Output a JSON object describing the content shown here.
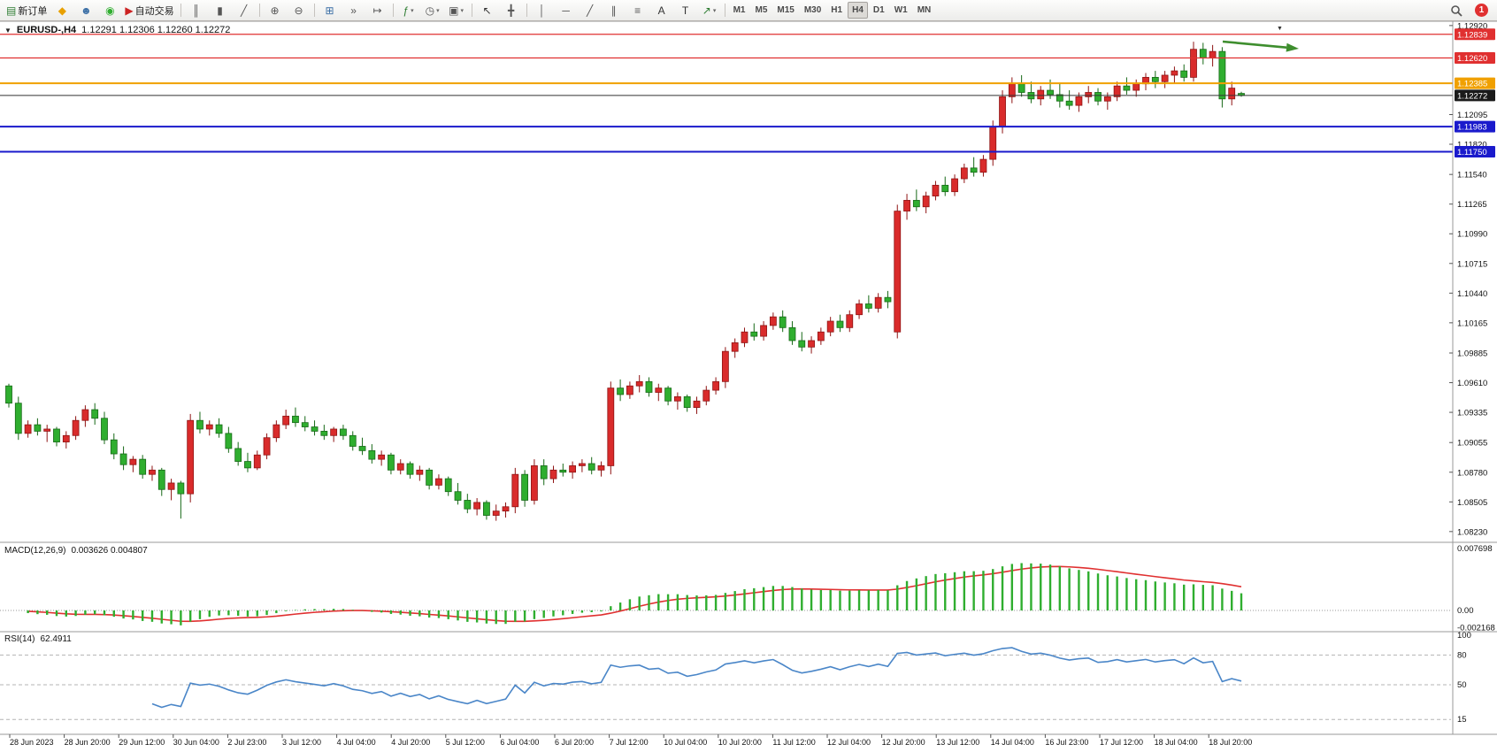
{
  "toolbar": {
    "groups": [
      {
        "name": "trade",
        "items": [
          {
            "name": "new-order-button",
            "glyph": "▤",
            "glyph_color": "#2e7d32",
            "label": "新订单"
          },
          {
            "name": "profiles-button",
            "glyph": "◆",
            "glyph_color": "#e8a000"
          },
          {
            "name": "market-watch-button",
            "glyph": "☻",
            "glyph_color": "#3a6ea5"
          },
          {
            "name": "signals-button",
            "glyph": "◉",
            "glyph_color": "#2fae2f"
          },
          {
            "name": "autotrading-button",
            "glyph": "▶",
            "glyph_color": "#cc2222",
            "label": "自动交易"
          }
        ]
      },
      {
        "name": "chart-type",
        "items": [
          {
            "name": "bar-chart-button",
            "glyph": "║",
            "glyph_color": "#555"
          },
          {
            "name": "candlestick-button",
            "glyph": "▮",
            "glyph_color": "#555"
          },
          {
            "name": "line-chart-button",
            "glyph": "╱",
            "glyph_color": "#555"
          }
        ]
      },
      {
        "name": "zoom",
        "items": [
          {
            "name": "zoom-in-button",
            "glyph": "⊕",
            "glyph_color": "#555"
          },
          {
            "name": "zoom-out-button",
            "glyph": "⊖",
            "glyph_color": "#555"
          }
        ]
      },
      {
        "name": "windows",
        "items": [
          {
            "name": "tile-windows-button",
            "glyph": "⊞",
            "glyph_color": "#3a6ea5"
          },
          {
            "name": "auto-scroll-button",
            "glyph": "»",
            "glyph_color": "#555"
          },
          {
            "name": "chart-shift-button",
            "glyph": "↦",
            "glyph_color": "#555"
          }
        ]
      },
      {
        "name": "insert",
        "items": [
          {
            "name": "indicators-button",
            "glyph": "ƒ",
            "glyph_color": "#2e7d32",
            "dropdown": true
          },
          {
            "name": "periods-button",
            "glyph": "◷",
            "glyph_color": "#555",
            "dropdown": true
          },
          {
            "name": "templates-button",
            "glyph": "▣",
            "glyph_color": "#555",
            "dropdown": true
          }
        ]
      },
      {
        "name": "cursor",
        "items": [
          {
            "name": "cursor-button",
            "glyph": "↖",
            "glyph_color": "#333"
          },
          {
            "name": "crosshair-button",
            "glyph": "╋",
            "glyph_color": "#555"
          }
        ]
      },
      {
        "name": "objects",
        "items": [
          {
            "name": "vertical-line-button",
            "glyph": "│",
            "glyph_color": "#555"
          },
          {
            "name": "horizontal-line-button",
            "glyph": "─",
            "glyph_color": "#555"
          },
          {
            "name": "trendline-button",
            "glyph": "╱",
            "glyph_color": "#555"
          },
          {
            "name": "channel-button",
            "glyph": "∥",
            "glyph_color": "#555"
          },
          {
            "name": "fibonacci-button",
            "glyph": "≡",
            "glyph_color": "#555"
          },
          {
            "name": "text-button",
            "glyph": "A",
            "glyph_color": "#333"
          },
          {
            "name": "label-button",
            "glyph": "T",
            "glyph_color": "#333"
          },
          {
            "name": "arrows-button",
            "glyph": "↗",
            "glyph_color": "#2e7d32",
            "dropdown": true
          }
        ]
      }
    ],
    "timeframes": [
      {
        "label": "M1"
      },
      {
        "label": "M5"
      },
      {
        "label": "M15"
      },
      {
        "label": "M30"
      },
      {
        "label": "H1"
      },
      {
        "label": "H4",
        "active": true
      },
      {
        "label": "D1"
      },
      {
        "label": "W1"
      },
      {
        "label": "MN"
      }
    ],
    "notification_count": "1"
  },
  "chart": {
    "collapse_icon": "▼",
    "info_symbol": "EURUSD-,H4",
    "info_ohlc": "1.12291 1.12306 1.12260 1.12272",
    "scroll_marker": "▼",
    "axis_ticks": [
      "1.12920",
      "1.12095",
      "1.11820",
      "1.11540",
      "1.11265",
      "1.10990",
      "1.10715",
      "1.10440",
      "1.10165",
      "1.09885",
      "1.09610",
      "1.09335",
      "1.09055",
      "1.08780",
      "1.08505",
      "1.08230"
    ],
    "axis_badges": [
      {
        "label": "1.12839",
        "price": 1.12839,
        "color": "#e03030"
      },
      {
        "label": "1.12620",
        "price": 1.1262,
        "color": "#e03030"
      },
      {
        "label": "1.12385",
        "price": 1.12385,
        "color": "#f0a000"
      },
      {
        "label": "1.12272",
        "price": 1.12272,
        "color": "#1a1a1a"
      },
      {
        "label": "1.11983",
        "price": 1.11983,
        "color": "#1a1acc"
      },
      {
        "label": "1.11750",
        "price": 1.1175,
        "color": "#1a1acc"
      }
    ],
    "arrow": {
      "from": [
        1382,
        47
      ],
      "to": [
        1468,
        55
      ],
      "color": "#3e8e2e"
    }
  },
  "macd": {
    "label": "MACD(12,26,9)",
    "values": "0.003626 0.004807",
    "axis": [
      "0.007698",
      "0.00",
      "-0.002168"
    ]
  },
  "rsi": {
    "label": "RSI(14)",
    "value": "62.4911",
    "levels": [
      100,
      80,
      50,
      15
    ]
  },
  "chart_data": [
    {
      "type": "candlestick",
      "symbol": "EURUSD",
      "timeframe": "H4",
      "up_color": "#d92b2b",
      "down_color": "#2fae2f",
      "color_convention": "red=bullish, green=bearish (CN style)",
      "ylim": [
        1.0813,
        1.1296
      ],
      "current_price": 1.12272,
      "hlines": [
        {
          "price": 1.12839,
          "color": "#e03030",
          "width": 1.2
        },
        {
          "price": 1.1262,
          "color": "#e03030",
          "width": 1.2
        },
        {
          "price": 1.12385,
          "color": "#f0a000",
          "width": 2
        },
        {
          "price": 1.11983,
          "color": "#1a1acc",
          "width": 2
        },
        {
          "price": 1.1175,
          "color": "#1a1acc",
          "width": 2
        }
      ],
      "x_labels": [
        "28 Jun 2023",
        "28 Jun 20:00",
        "29 Jun 12:00",
        "30 Jun 04:00",
        "2 Jul 23:00",
        "3 Jul 12:00",
        "4 Jul 04:00",
        "4 Jul 20:00",
        "5 Jul 12:00",
        "6 Jul 04:00",
        "6 Jul 20:00",
        "7 Jul 12:00",
        "10 Jul 04:00",
        "10 Jul 20:00",
        "11 Jul 12:00",
        "12 Jul 04:00",
        "12 Jul 20:00",
        "13 Jul 12:00",
        "14 Jul 04:00",
        "16 Jul 23:00",
        "17 Jul 12:00",
        "18 Jul 04:00",
        "18 Jul 20:00"
      ],
      "ohlc": [
        [
          1.0958,
          1.096,
          1.0938,
          1.0942
        ],
        [
          1.0942,
          1.0948,
          1.0908,
          1.0914
        ],
        [
          1.0914,
          1.0926,
          1.091,
          1.0922
        ],
        [
          1.0922,
          1.0928,
          1.0912,
          1.0916
        ],
        [
          1.0916,
          1.0922,
          1.0906,
          1.0918
        ],
        [
          1.0918,
          1.092,
          1.0902,
          1.0906
        ],
        [
          1.0906,
          1.0916,
          1.09,
          1.0912
        ],
        [
          1.0912,
          1.093,
          1.0908,
          1.0926
        ],
        [
          1.0926,
          1.094,
          1.092,
          1.0936
        ],
        [
          1.0936,
          1.0942,
          1.0922,
          1.0928
        ],
        [
          1.0928,
          1.0934,
          1.0904,
          1.0908
        ],
        [
          1.0908,
          1.0914,
          1.089,
          1.0895
        ],
        [
          1.0895,
          1.0902,
          1.088,
          1.0885
        ],
        [
          1.0885,
          1.0893,
          1.0878,
          1.089
        ],
        [
          1.089,
          1.0894,
          1.0872,
          1.0876
        ],
        [
          1.0876,
          1.0884,
          1.087,
          1.088
        ],
        [
          1.088,
          1.0882,
          1.0856,
          1.0862
        ],
        [
          1.0862,
          1.0872,
          1.0852,
          1.0868
        ],
        [
          1.0868,
          1.087,
          1.0835,
          1.0858
        ],
        [
          1.0858,
          1.0932,
          1.085,
          1.0926
        ],
        [
          1.0926,
          1.0934,
          1.0914,
          1.0918
        ],
        [
          1.0918,
          1.0926,
          1.0912,
          1.0922
        ],
        [
          1.0922,
          1.0928,
          1.091,
          1.0914
        ],
        [
          1.0914,
          1.092,
          1.0896,
          1.09
        ],
        [
          1.09,
          1.0906,
          1.0884,
          1.0888
        ],
        [
          1.0888,
          1.0896,
          1.0878,
          1.0882
        ],
        [
          1.0882,
          1.0898,
          1.088,
          1.0894
        ],
        [
          1.0894,
          1.0914,
          1.089,
          1.091
        ],
        [
          1.091,
          1.0926,
          1.0906,
          1.0922
        ],
        [
          1.0922,
          1.0936,
          1.0918,
          1.093
        ],
        [
          1.093,
          1.0938,
          1.092,
          1.0924
        ],
        [
          1.0924,
          1.093,
          1.0916,
          1.092
        ],
        [
          1.092,
          1.0926,
          1.0912,
          1.0916
        ],
        [
          1.0916,
          1.0922,
          1.0908,
          1.0912
        ],
        [
          1.0912,
          1.092,
          1.0906,
          1.0918
        ],
        [
          1.0918,
          1.0922,
          1.0908,
          1.0912
        ],
        [
          1.0912,
          1.0916,
          1.0898,
          1.0902
        ],
        [
          1.0902,
          1.091,
          1.0894,
          1.0898
        ],
        [
          1.0898,
          1.0904,
          1.0886,
          1.089
        ],
        [
          1.089,
          1.0898,
          1.0884,
          1.0894
        ],
        [
          1.0894,
          1.0896,
          1.0876,
          1.088
        ],
        [
          1.088,
          1.089,
          1.0876,
          1.0886
        ],
        [
          1.0886,
          1.0888,
          1.0872,
          1.0876
        ],
        [
          1.0876,
          1.0884,
          1.087,
          1.088
        ],
        [
          1.088,
          1.0882,
          1.0862,
          1.0866
        ],
        [
          1.0866,
          1.0876,
          1.0862,
          1.0872
        ],
        [
          1.0872,
          1.0874,
          1.0856,
          1.086
        ],
        [
          1.086,
          1.0868,
          1.0848,
          1.0852
        ],
        [
          1.0852,
          1.0858,
          1.084,
          1.0844
        ],
        [
          1.0844,
          1.0854,
          1.0838,
          1.085
        ],
        [
          1.085,
          1.0852,
          1.0834,
          1.0838
        ],
        [
          1.0838,
          1.0848,
          1.0833,
          1.0842
        ],
        [
          1.0842,
          1.085,
          1.0836,
          1.0846
        ],
        [
          1.0846,
          1.0882,
          1.084,
          1.0876
        ],
        [
          1.0876,
          1.088,
          1.0846,
          1.0852
        ],
        [
          1.0852,
          1.089,
          1.0848,
          1.0884
        ],
        [
          1.0884,
          1.089,
          1.0866,
          1.0872
        ],
        [
          1.0872,
          1.0884,
          1.0868,
          1.088
        ],
        [
          1.088,
          1.0886,
          1.0874,
          1.0878
        ],
        [
          1.0878,
          1.0888,
          1.0872,
          1.0884
        ],
        [
          1.0884,
          1.089,
          1.0878,
          1.0886
        ],
        [
          1.0886,
          1.0892,
          1.0876,
          1.088
        ],
        [
          1.088,
          1.0888,
          1.0874,
          1.0884
        ],
        [
          1.0884,
          1.0962,
          1.0876,
          1.0956
        ],
        [
          1.0956,
          1.0964,
          1.0944,
          1.095
        ],
        [
          1.095,
          1.0962,
          1.0946,
          1.0958
        ],
        [
          1.0958,
          1.0968,
          1.0952,
          1.0962
        ],
        [
          1.0962,
          1.0966,
          1.0948,
          1.0952
        ],
        [
          1.0952,
          1.096,
          1.0944,
          1.0956
        ],
        [
          1.0956,
          1.0958,
          1.094,
          1.0944
        ],
        [
          1.0944,
          1.0952,
          1.0936,
          1.0948
        ],
        [
          1.0948,
          1.095,
          1.0934,
          1.0938
        ],
        [
          1.0938,
          1.0948,
          1.0932,
          1.0944
        ],
        [
          1.0944,
          1.0958,
          1.094,
          1.0954
        ],
        [
          1.0954,
          1.0966,
          1.095,
          1.0962
        ],
        [
          1.0962,
          1.0994,
          1.0956,
          1.099
        ],
        [
          1.099,
          1.1002,
          1.0984,
          1.0998
        ],
        [
          1.0998,
          1.1012,
          1.0994,
          1.1008
        ],
        [
          1.1008,
          1.1016,
          1.1,
          1.1004
        ],
        [
          1.1004,
          1.1018,
          1.1,
          1.1014
        ],
        [
          1.1014,
          1.1026,
          1.101,
          1.1022
        ],
        [
          1.1022,
          1.1028,
          1.1008,
          1.1012
        ],
        [
          1.1012,
          1.1018,
          1.0996,
          1.1
        ],
        [
          1.1,
          1.1008,
          1.099,
          1.0994
        ],
        [
          1.0994,
          1.1004,
          1.0988,
          1.1
        ],
        [
          1.1,
          1.1012,
          1.0996,
          1.1008
        ],
        [
          1.1008,
          1.1022,
          1.1004,
          1.1018
        ],
        [
          1.1018,
          1.1024,
          1.1008,
          1.1012
        ],
        [
          1.1012,
          1.1028,
          1.1008,
          1.1024
        ],
        [
          1.1024,
          1.1038,
          1.102,
          1.1034
        ],
        [
          1.1034,
          1.1042,
          1.1026,
          1.103
        ],
        [
          1.103,
          1.1044,
          1.1026,
          1.104
        ],
        [
          1.104,
          1.1046,
          1.103,
          1.1036
        ],
        [
          1.1008,
          1.1126,
          1.1002,
          1.112
        ],
        [
          1.112,
          1.1136,
          1.1112,
          1.113
        ],
        [
          1.113,
          1.114,
          1.112,
          1.1124
        ],
        [
          1.1124,
          1.1138,
          1.1118,
          1.1134
        ],
        [
          1.1134,
          1.1148,
          1.113,
          1.1144
        ],
        [
          1.1144,
          1.1152,
          1.1134,
          1.1138
        ],
        [
          1.1138,
          1.1154,
          1.1134,
          1.115
        ],
        [
          1.115,
          1.1164,
          1.1146,
          1.116
        ],
        [
          1.116,
          1.117,
          1.1152,
          1.1156
        ],
        [
          1.1156,
          1.1172,
          1.1152,
          1.1168
        ],
        [
          1.1168,
          1.1204,
          1.1162,
          1.1198
        ],
        [
          1.1198,
          1.1232,
          1.1192,
          1.1226
        ],
        [
          1.1226,
          1.1244,
          1.122,
          1.1238
        ],
        [
          1.1238,
          1.1246,
          1.1226,
          1.123
        ],
        [
          1.123,
          1.124,
          1.122,
          1.1224
        ],
        [
          1.1224,
          1.1236,
          1.1218,
          1.1232
        ],
        [
          1.1232,
          1.1242,
          1.1224,
          1.1228
        ],
        [
          1.1228,
          1.1238,
          1.1216,
          1.1222
        ],
        [
          1.1222,
          1.1232,
          1.1214,
          1.1218
        ],
        [
          1.1218,
          1.123,
          1.1212,
          1.1226
        ],
        [
          1.1226,
          1.1236,
          1.122,
          1.123
        ],
        [
          1.123,
          1.1234,
          1.1218,
          1.1222
        ],
        [
          1.1222,
          1.123,
          1.1214,
          1.1226
        ],
        [
          1.1226,
          1.124,
          1.1222,
          1.1236
        ],
        [
          1.1236,
          1.1244,
          1.1228,
          1.1232
        ],
        [
          1.1232,
          1.1242,
          1.1226,
          1.1238
        ],
        [
          1.1238,
          1.1248,
          1.1232,
          1.1244
        ],
        [
          1.1244,
          1.125,
          1.1234,
          1.124
        ],
        [
          1.124,
          1.125,
          1.1234,
          1.1246
        ],
        [
          1.1246,
          1.1254,
          1.1238,
          1.125
        ],
        [
          1.125,
          1.1256,
          1.124,
          1.1244
        ],
        [
          1.1244,
          1.1277,
          1.124,
          1.127
        ],
        [
          1.127,
          1.1276,
          1.1256,
          1.1262
        ],
        [
          1.1262,
          1.1274,
          1.1254,
          1.1268
        ],
        [
          1.1268,
          1.1272,
          1.1216,
          1.1224
        ],
        [
          1.1224,
          1.124,
          1.1218,
          1.1234
        ],
        [
          1.12291,
          1.12306,
          1.1226,
          1.12272
        ]
      ]
    },
    {
      "type": "macd",
      "title": "MACD(12,26,9)",
      "fast": 12,
      "slow": 26,
      "signal_period": 9,
      "current_macd": 0.003626,
      "current_signal": 0.004807,
      "y_ticks": [
        0.007698,
        0,
        -0.002168
      ],
      "hist_color": "#2fae2f",
      "signal_color": "#e03030"
    },
    {
      "type": "rsi",
      "title": "RSI(14)",
      "period": 14,
      "current_value": 62.4911,
      "levels": [
        100,
        80,
        50,
        15
      ],
      "line_color": "#4a86c8"
    }
  ]
}
